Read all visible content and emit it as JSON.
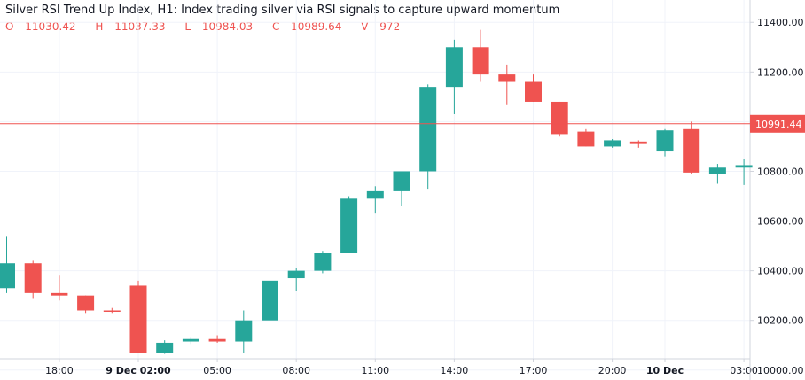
{
  "header": {
    "title": "Silver RSI Trend Up Index, H1: Index trading silver via RSI signals to capture upward momentum",
    "ohlc": [
      {
        "label": "O",
        "value": "11030.42"
      },
      {
        "label": "H",
        "value": "11037.33"
      },
      {
        "label": "L",
        "value": "10984.03"
      },
      {
        "label": "C",
        "value": "10989.64"
      },
      {
        "label": "V",
        "value": "972"
      }
    ]
  },
  "colors": {
    "up": "#26a69a",
    "down": "#ef5350",
    "grid": "#f0f3fa",
    "axis": "#d1d4dc",
    "price_line": "#ef5350"
  },
  "chart_data": {
    "type": "candlestick",
    "timeframe": "H1",
    "y_range": [
      9960,
      11490
    ],
    "y_ticks": [
      {
        "value": 10000,
        "label": "10000.00"
      },
      {
        "value": 10200,
        "label": "10200.00"
      },
      {
        "value": 10400,
        "label": "10400.00"
      },
      {
        "value": 10600,
        "label": "10600.00"
      },
      {
        "value": 10800,
        "label": "10800.00"
      },
      {
        "value": 11000,
        "label": "11000.00"
      },
      {
        "value": 11200,
        "label": "11200.00"
      },
      {
        "value": 11400,
        "label": "11400.00"
      }
    ],
    "last_price": {
      "value": 10991.44,
      "label": "10991.44"
    },
    "x_ticks": [
      {
        "index": 2,
        "label": "18:00",
        "bold": false
      },
      {
        "index": 5,
        "label": "9 Dec 02:00",
        "bold": true
      },
      {
        "index": 8,
        "label": "05:00",
        "bold": false
      },
      {
        "index": 11,
        "label": "08:00",
        "bold": false
      },
      {
        "index": 14,
        "label": "11:00",
        "bold": false
      },
      {
        "index": 17,
        "label": "14:00",
        "bold": false
      },
      {
        "index": 20,
        "label": "17:00",
        "bold": false
      },
      {
        "index": 23,
        "label": "20:00",
        "bold": false
      },
      {
        "index": 25,
        "label": "10 Dec",
        "bold": true
      },
      {
        "index": 28,
        "label": "03:00",
        "bold": false
      }
    ],
    "candles": [
      {
        "o": 10330,
        "h": 10540,
        "l": 10310,
        "c": 10430
      },
      {
        "o": 10430,
        "h": 10440,
        "l": 10290,
        "c": 10310
      },
      {
        "o": 10310,
        "h": 10380,
        "l": 10280,
        "c": 10300
      },
      {
        "o": 10300,
        "h": 10300,
        "l": 10230,
        "c": 10240
      },
      {
        "o": 10240,
        "h": 10250,
        "l": 10230,
        "c": 10235
      },
      {
        "o": 10340,
        "h": 10360,
        "l": 10070,
        "c": 10070
      },
      {
        "o": 10070,
        "h": 10120,
        "l": 10065,
        "c": 10110
      },
      {
        "o": 10115,
        "h": 10130,
        "l": 10105,
        "c": 10125
      },
      {
        "o": 10125,
        "h": 10140,
        "l": 10110,
        "c": 10115
      },
      {
        "o": 10115,
        "h": 10240,
        "l": 10070,
        "c": 10200
      },
      {
        "o": 10200,
        "h": 10360,
        "l": 10190,
        "c": 10360
      },
      {
        "o": 10370,
        "h": 10410,
        "l": 10320,
        "c": 10400
      },
      {
        "o": 10400,
        "h": 10480,
        "l": 10390,
        "c": 10470
      },
      {
        "o": 10470,
        "h": 10700,
        "l": 10470,
        "c": 10690
      },
      {
        "o": 10690,
        "h": 10740,
        "l": 10630,
        "c": 10720
      },
      {
        "o": 10720,
        "h": 10800,
        "l": 10660,
        "c": 10800
      },
      {
        "o": 10800,
        "h": 11150,
        "l": 10730,
        "c": 11140
      },
      {
        "o": 11140,
        "h": 11330,
        "l": 11030,
        "c": 11300
      },
      {
        "o": 11300,
        "h": 11370,
        "l": 11160,
        "c": 11190
      },
      {
        "o": 11190,
        "h": 11230,
        "l": 11070,
        "c": 11160
      },
      {
        "o": 11160,
        "h": 11190,
        "l": 11080,
        "c": 11080
      },
      {
        "o": 11080,
        "h": 11080,
        "l": 10940,
        "c": 10950
      },
      {
        "o": 10960,
        "h": 10970,
        "l": 10900,
        "c": 10900
      },
      {
        "o": 10900,
        "h": 10930,
        "l": 10895,
        "c": 10925
      },
      {
        "o": 10920,
        "h": 10925,
        "l": 10895,
        "c": 10910
      },
      {
        "o": 10880,
        "h": 10970,
        "l": 10860,
        "c": 10965
      },
      {
        "o": 10970,
        "h": 11000,
        "l": 10790,
        "c": 10795
      },
      {
        "o": 10790,
        "h": 10830,
        "l": 10750,
        "c": 10815
      },
      {
        "o": 10815,
        "h": 10850,
        "l": 10745,
        "c": 10825
      }
    ]
  }
}
